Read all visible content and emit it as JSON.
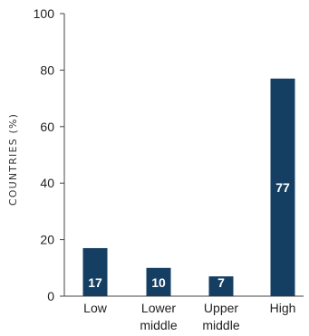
{
  "chart_data": {
    "type": "bar",
    "categories": [
      [
        "Low"
      ],
      [
        "Lower",
        "middle"
      ],
      [
        "Upper",
        "middle"
      ],
      [
        "High"
      ]
    ],
    "values": [
      17,
      10,
      7,
      77
    ],
    "ylabel": "COUNTRIES (%)",
    "xlabel": "",
    "title": "",
    "ylim": [
      0,
      100
    ],
    "yticks": [
      0,
      20,
      40,
      60,
      80,
      100
    ],
    "grid": false,
    "legend": "none",
    "bar_color": "#143f63",
    "axis_color": "#444444",
    "label_color": "#ffffff"
  }
}
